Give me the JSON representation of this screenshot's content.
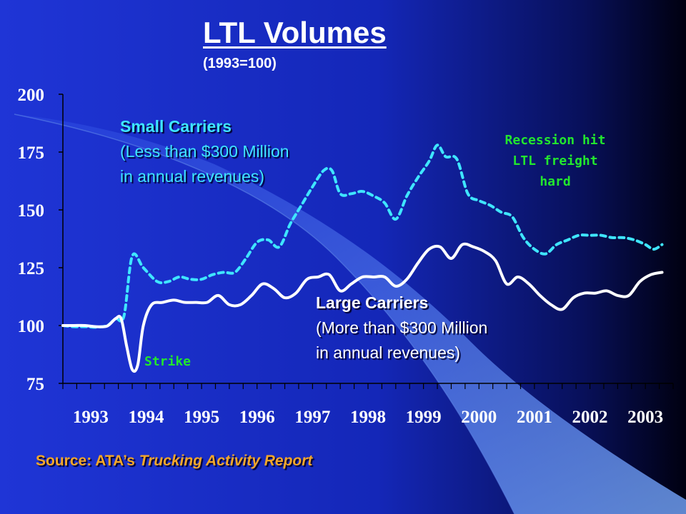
{
  "slide": {
    "title": "LTL Volumes",
    "subtitle": "(1993=100)",
    "annotations": {
      "small_carriers": [
        "Small Carriers",
        "(Less than $300 Million",
        "in annual revenues)"
      ],
      "large_carriers": [
        "Large Carriers",
        "(More than $300 Million",
        "in annual revenues)"
      ],
      "recession": [
        "Recession hit",
        "LTL freight",
        "hard"
      ],
      "strike": "Strike"
    },
    "source": {
      "prefix": "Source: ATA’s ",
      "italic": "Trucking Activity Report"
    },
    "colors": {
      "background_left": "#1f35d6",
      "background_right": "#000010",
      "small_label": "#3fe6ff",
      "annotation_green": "#22e62e",
      "source_orange": "#f4a72a",
      "axis_text": "#ffffff"
    }
  },
  "chart_data": {
    "type": "line",
    "title": "",
    "xlabel": "",
    "ylabel": "",
    "ylim": [
      75,
      200
    ],
    "xlim": [
      1993.0,
      2004.0
    ],
    "yticks": [
      75,
      100,
      125,
      150,
      175,
      200
    ],
    "xticks": [
      "1993",
      "1994",
      "1995",
      "1996",
      "1997",
      "1998",
      "1999",
      "2000",
      "2001",
      "2002",
      "2003"
    ],
    "grid": false,
    "legend": "none",
    "series": [
      {
        "name": "Small Carriers",
        "style": "dashed",
        "color": "#3fe6ff",
        "x": [
          1993.0,
          1993.2,
          1993.4,
          1993.6,
          1993.8,
          1993.95,
          1994.1,
          1994.25,
          1994.45,
          1994.7,
          1994.9,
          1995.1,
          1995.3,
          1995.5,
          1995.7,
          1995.9,
          1996.1,
          1996.3,
          1996.5,
          1996.7,
          1996.9,
          1997.1,
          1997.3,
          1997.5,
          1997.7,
          1997.85,
          1998.0,
          1998.2,
          1998.4,
          1998.6,
          1998.8,
          1999.0,
          1999.2,
          1999.4,
          1999.6,
          1999.75,
          1999.9,
          2000.1,
          2000.3,
          2000.5,
          2000.7,
          2000.9,
          2001.1,
          2001.3,
          2001.5,
          2001.7,
          2001.9,
          2002.1,
          2002.3,
          2002.5,
          2002.7,
          2002.9,
          2003.1,
          2003.3,
          2003.5,
          2003.65,
          2003.8
        ],
        "values": [
          100,
          99.5,
          99.5,
          99.3,
          100,
          103,
          104,
          130,
          125,
          119,
          119,
          121,
          120,
          120,
          122,
          123,
          123,
          129,
          136,
          137,
          134,
          144,
          152,
          160,
          167,
          167,
          157,
          157,
          158,
          156,
          153,
          146,
          156,
          164,
          171,
          178,
          173,
          172,
          157,
          154,
          152,
          149,
          147,
          138,
          133,
          131,
          135,
          137,
          139,
          139,
          139,
          138,
          138,
          137,
          135,
          133,
          135
        ]
      },
      {
        "name": "Large Carriers",
        "style": "solid",
        "color": "#ffffff",
        "x": [
          1993.0,
          1993.2,
          1993.4,
          1993.6,
          1993.8,
          1993.95,
          1994.05,
          1994.15,
          1994.25,
          1994.35,
          1994.45,
          1994.6,
          1994.8,
          1995.0,
          1995.2,
          1995.4,
          1995.6,
          1995.8,
          1996.0,
          1996.2,
          1996.4,
          1996.6,
          1996.8,
          1997.0,
          1997.2,
          1997.4,
          1997.6,
          1997.8,
          1998.0,
          1998.2,
          1998.4,
          1998.6,
          1998.8,
          1999.0,
          1999.2,
          1999.4,
          1999.6,
          1999.8,
          2000.0,
          2000.2,
          2000.4,
          2000.6,
          2000.8,
          2001.0,
          2001.2,
          2001.4,
          2001.6,
          2001.8,
          2002.0,
          2002.2,
          2002.4,
          2002.6,
          2002.8,
          2003.0,
          2003.2,
          2003.4,
          2003.6,
          2003.8
        ],
        "values": [
          100,
          100,
          100,
          99.5,
          99.8,
          103,
          103,
          91,
          81,
          83,
          100,
          109,
          110,
          111,
          110,
          110,
          110,
          113,
          109,
          109,
          113,
          118,
          116,
          112,
          114,
          120,
          121,
          122,
          115,
          118,
          121,
          121,
          121,
          117,
          120,
          127,
          133,
          134,
          129,
          135,
          134,
          132,
          128,
          118,
          121,
          118,
          113,
          109,
          107,
          112,
          114,
          114,
          115,
          113,
          113,
          119,
          122,
          123
        ]
      }
    ]
  }
}
